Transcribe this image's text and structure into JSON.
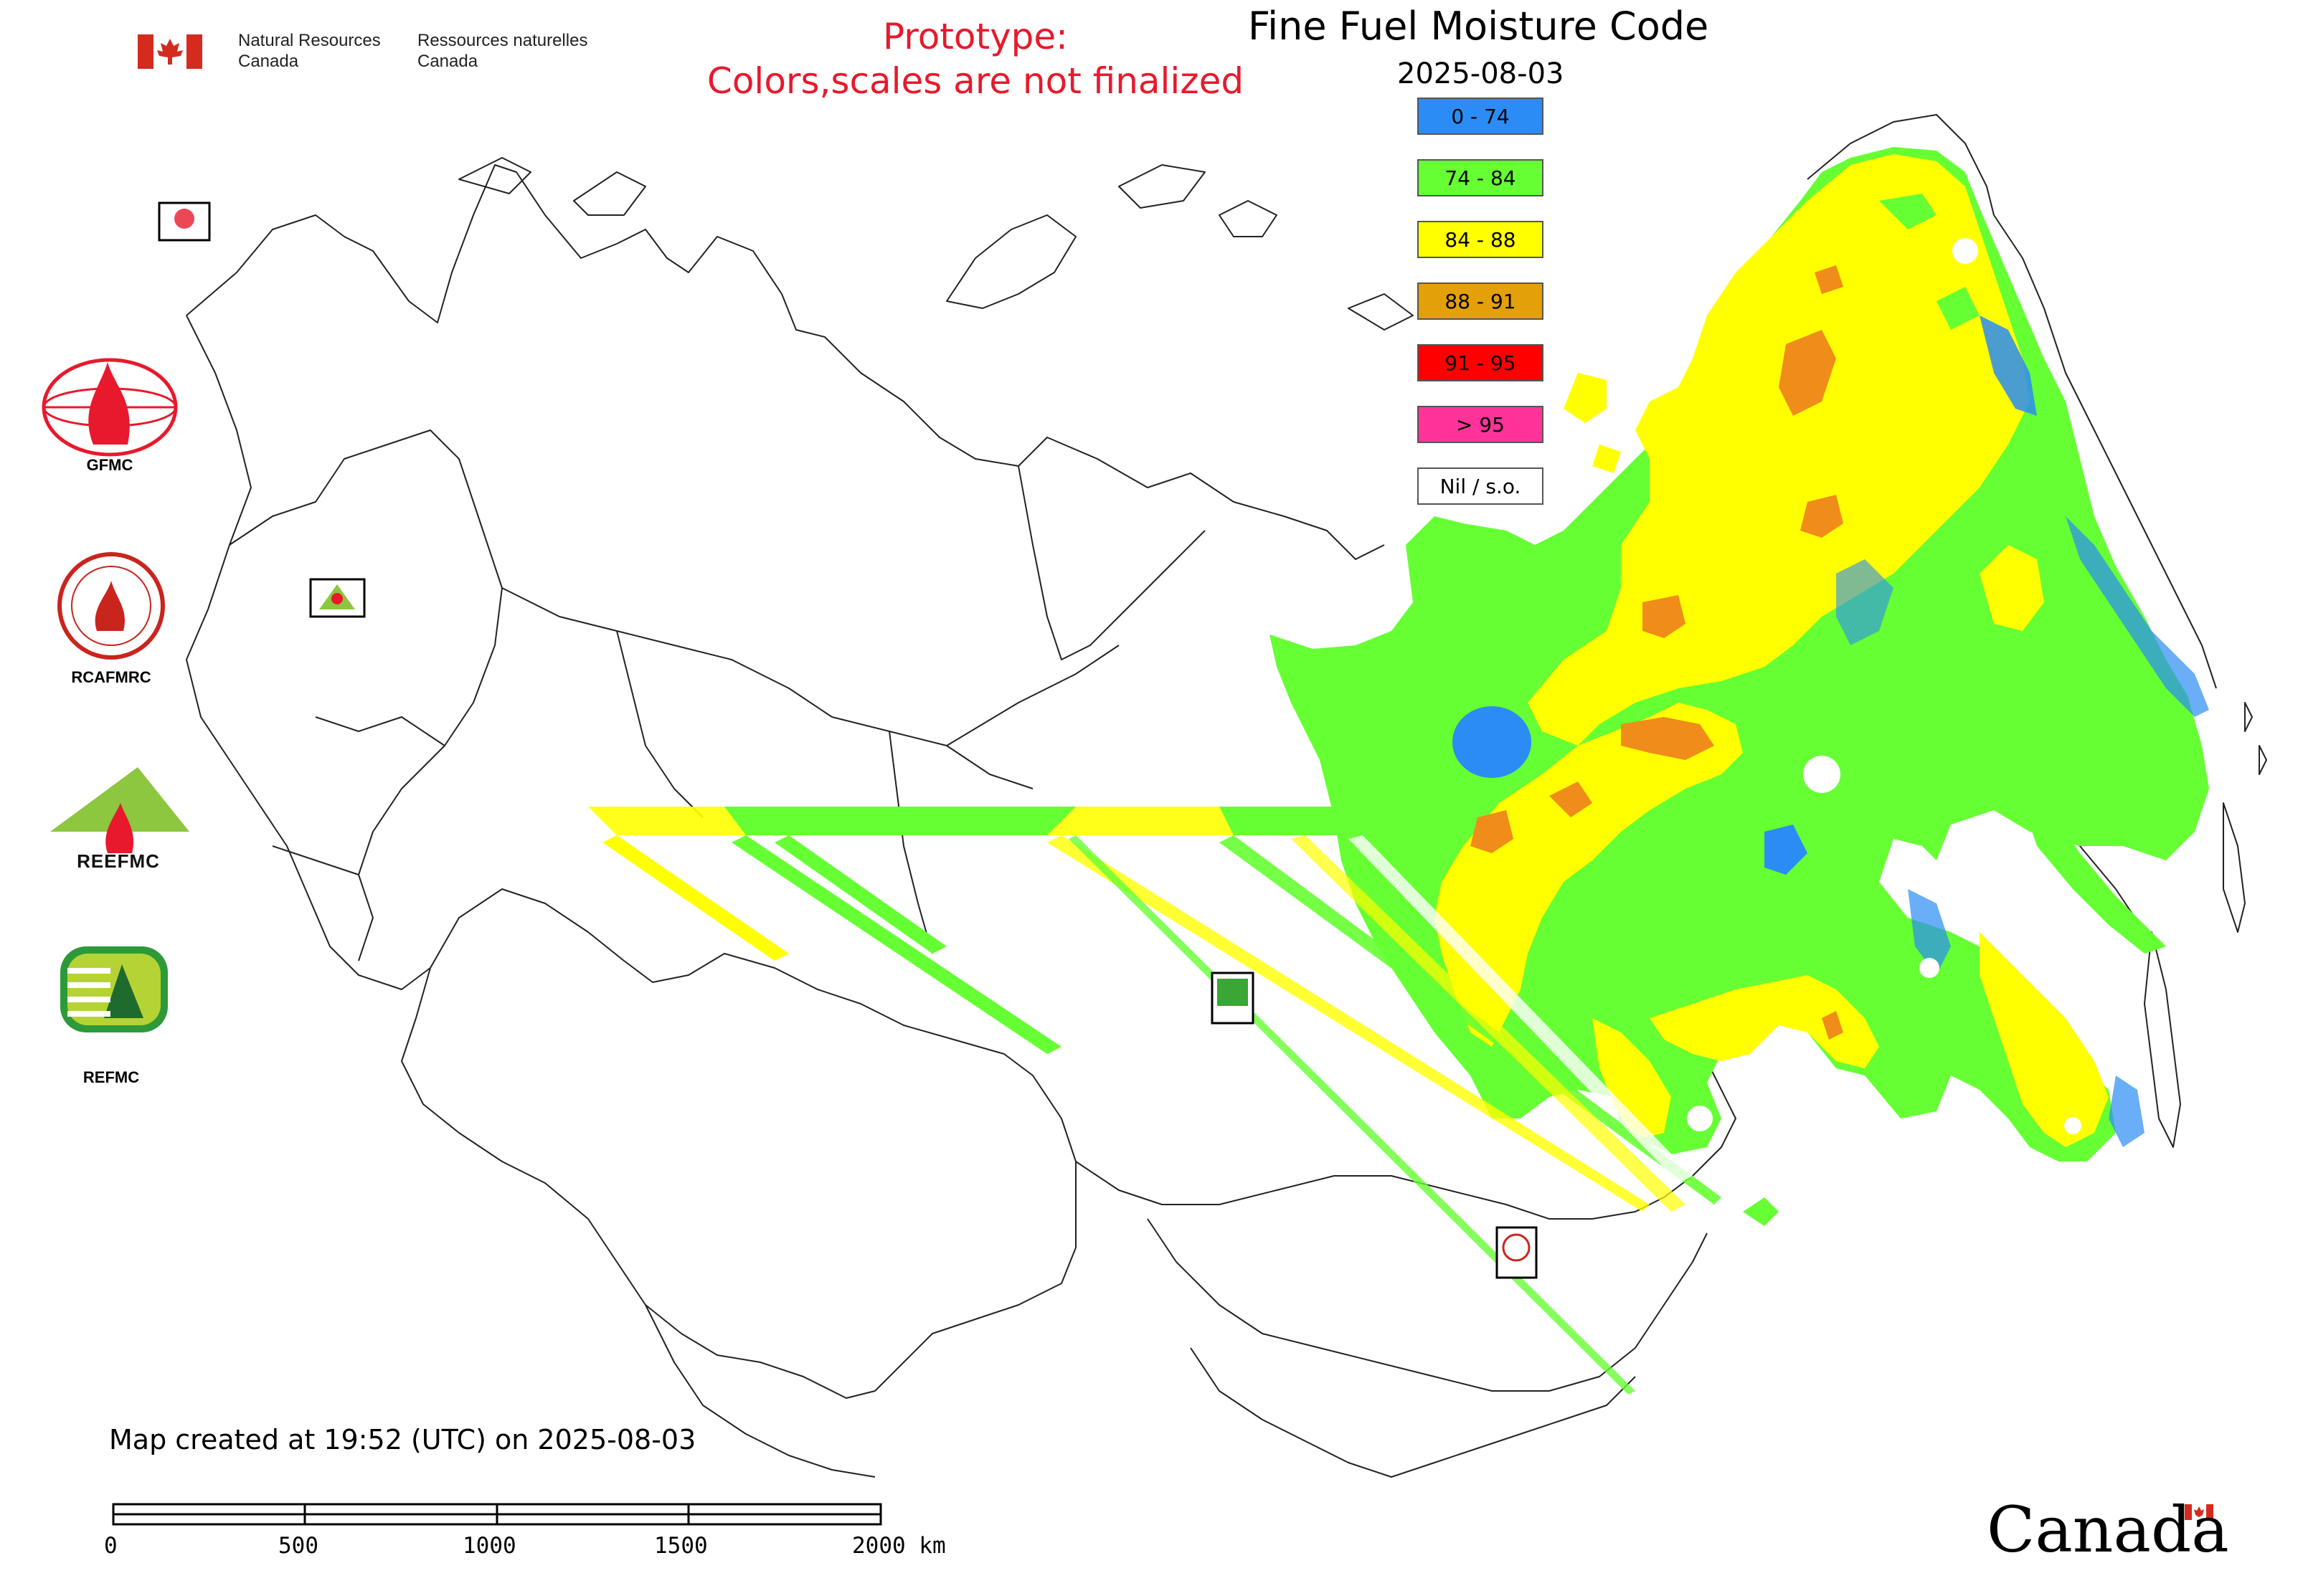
{
  "header": {
    "agency_en_line1": "Natural Resources",
    "agency_en_line2": "Canada",
    "agency_fr_line1": "Ressources naturelles",
    "agency_fr_line2": "Canada",
    "prototype_line1": "Prototype:",
    "prototype_line2": "Colors,scales are not finalized",
    "title": "Fine Fuel Moisture Code",
    "date": "2025-08-03"
  },
  "legend": [
    {
      "label": "0 - 74",
      "color": "#2b8cf5"
    },
    {
      "label": "74 - 84",
      "color": "#66ff33"
    },
    {
      "label": "84 - 88",
      "color": "#ffff00"
    },
    {
      "label": "88 - 91",
      "color": "#e3a008"
    },
    {
      "label": "91 - 95",
      "color": "#ff0000"
    },
    {
      "label": "> 95",
      "color": "#ff3399"
    },
    {
      "label": "Nil / s.o.",
      "color": "#ffffff"
    }
  ],
  "logos": {
    "gfmc": "GFMC",
    "rcafmrc": "RCAFMRC",
    "reefmc_sub": "REEFMC",
    "refmc": "REFMC",
    "rcafmrc_badge_text": "RCAFMRC",
    "ree_badge_text": "REEFMC",
    "gfmc_badge_text": "GFMC",
    "refmc_badge_text": "REFMC"
  },
  "footer": {
    "created": "Map created at 19:52 (UTC) on 2025-08-03",
    "scale_labels": [
      "0",
      "500",
      "1000",
      "1500",
      "2000 km"
    ],
    "wordmark": "Canada"
  },
  "colors": {
    "fmc_blue": "#2b8cf5",
    "fmc_green": "#66ff33",
    "fmc_yellow": "#ffff00",
    "fmc_orange": "#f08c1a",
    "prototype_red": "#e8192c",
    "canada_red": "#d52b1e"
  }
}
